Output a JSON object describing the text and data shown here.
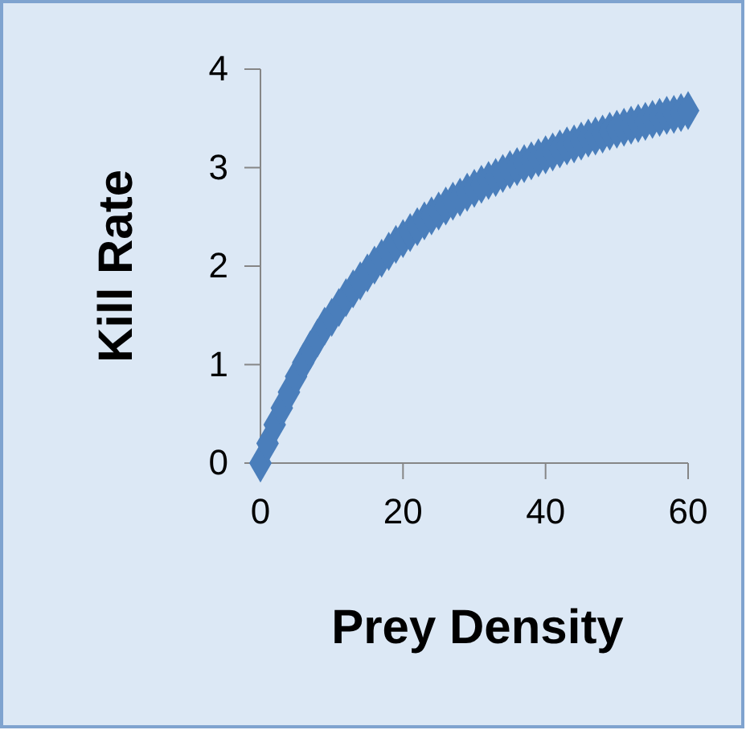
{
  "chart_data": {
    "type": "scatter",
    "xlabel": "Prey Density",
    "ylabel": "Kill Rate",
    "marker": "diamond",
    "grid": false,
    "xlim": [
      0,
      60
    ],
    "xticks": [
      0,
      20,
      40,
      60
    ],
    "ylim": [
      0,
      4
    ],
    "yticks": [
      0,
      1,
      2,
      3,
      4
    ],
    "series": [
      {
        "color": "#4a7ebb",
        "x": [
          0,
          1,
          2,
          3,
          4,
          5,
          6,
          7,
          8,
          9,
          10,
          11,
          12,
          13,
          14,
          15,
          16,
          17,
          18,
          19,
          20,
          21,
          22,
          23,
          24,
          25,
          26,
          27,
          28,
          29,
          30,
          31,
          32,
          33,
          34,
          35,
          36,
          37,
          38,
          39,
          40,
          41,
          42,
          43,
          44,
          45,
          46,
          47,
          48,
          49,
          50,
          51,
          52,
          53,
          54,
          55,
          56,
          57,
          58,
          59,
          60
        ],
        "values": [
          0,
          0.2,
          0.39,
          0.56,
          0.72,
          0.88,
          1.02,
          1.15,
          1.27,
          1.39,
          1.48,
          1.58,
          1.68,
          1.77,
          1.85,
          1.93,
          2.01,
          2.08,
          2.15,
          2.22,
          2.28,
          2.34,
          2.4,
          2.46,
          2.51,
          2.56,
          2.61,
          2.66,
          2.7,
          2.75,
          2.79,
          2.83,
          2.87,
          2.9,
          2.94,
          2.98,
          3.01,
          3.04,
          3.07,
          3.1,
          3.13,
          3.16,
          3.19,
          3.22,
          3.24,
          3.27,
          3.3,
          3.32,
          3.34,
          3.37,
          3.39,
          3.41,
          3.43,
          3.45,
          3.47,
          3.49,
          3.51,
          3.53,
          3.54,
          3.56,
          3.58
        ]
      }
    ]
  }
}
